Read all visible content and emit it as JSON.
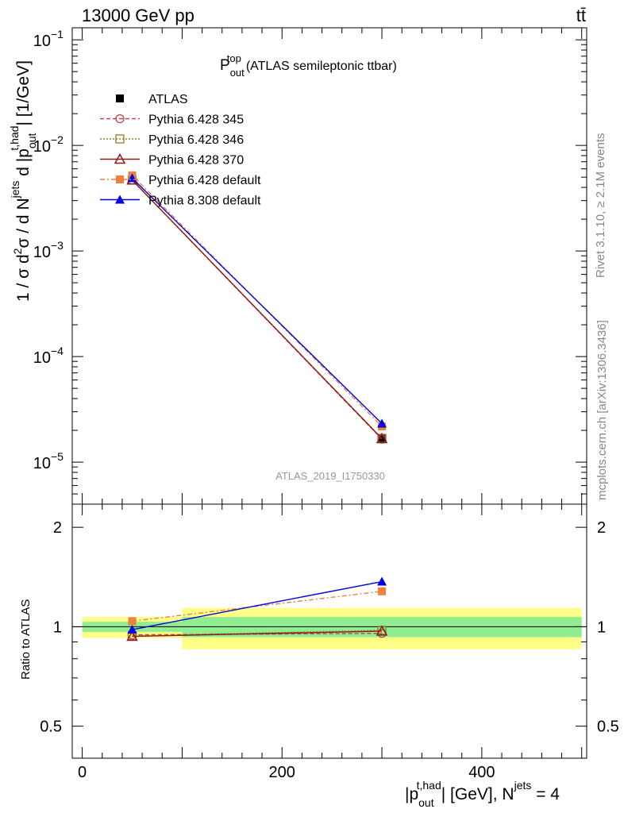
{
  "header": {
    "energy": "13000 GeV pp",
    "process": "tt̄"
  },
  "side_labels": {
    "rivet": "Rivet 3.1.10, ≥ 2.1M events",
    "mcplots": "mcplots.cern.ch [arXiv:1306.3436]"
  },
  "watermark": "ATLAS_2019_I1750330",
  "chart_data": [
    {
      "type": "line",
      "title": "(ATLAS semileptonic ttbar)",
      "title_sym": "P",
      "title_sup": "top",
      "title_sub": "out",
      "ylabel": "1 / σ d²σ / d N^jets d |p_out^t,had| [1/GeV]",
      "yscale": "log",
      "ylim": [
        4e-06,
        0.13
      ],
      "xlim": [
        -10,
        505
      ],
      "yticks": [
        {
          "v": 1e-05,
          "label": "10",
          "exp": "−5"
        },
        {
          "v": 0.0001,
          "label": "10",
          "exp": "−4"
        },
        {
          "v": 0.001,
          "label": "10",
          "exp": "−3"
        },
        {
          "v": 0.01,
          "label": "10",
          "exp": "−2"
        },
        {
          "v": 0.1,
          "label": "10",
          "exp": "−1"
        }
      ],
      "legend_position": "top-left",
      "x": [
        50,
        300
      ],
      "series": [
        {
          "name": "ATLAS",
          "values": [
            0.005,
            1.7e-05
          ],
          "color": "#000000",
          "marker": "square-filled",
          "dash": "none"
        },
        {
          "name": "Pythia 6.428 345",
          "values": [
            0.0047,
            1.65e-05
          ],
          "color": "#c0404a",
          "marker": "circle-open",
          "dash": "5,3"
        },
        {
          "name": "Pythia 6.428 346",
          "values": [
            0.0047,
            1.68e-05
          ],
          "color": "#9a7a2a",
          "marker": "square-open",
          "dash": "2,2"
        },
        {
          "name": "Pythia 6.428 370",
          "values": [
            0.0047,
            1.67e-05
          ],
          "color": "#8b1a1a",
          "marker": "triangle-open",
          "dash": "none"
        },
        {
          "name": "Pythia 6.428 default",
          "values": [
            0.0052,
            2.18e-05
          ],
          "color": "#f08040",
          "marker": "square-filled",
          "dash": "6,3,2,3"
        },
        {
          "name": "Pythia 8.308 default",
          "values": [
            0.0049,
            2.32e-05
          ],
          "color": "#0000e0",
          "marker": "triangle-filled",
          "dash": "none"
        }
      ]
    },
    {
      "type": "line",
      "ylabel": "Ratio to ATLAS",
      "yscale": "log",
      "ylim": [
        0.4,
        2.35
      ],
      "yticks": [
        {
          "v": 0.5,
          "label": "0.5"
        },
        {
          "v": 1,
          "label": "1"
        },
        {
          "v": 2,
          "label": "2"
        }
      ],
      "xticks": [
        {
          "v": 0,
          "label": "0"
        },
        {
          "v": 200,
          "label": "200"
        },
        {
          "v": 400,
          "label": "400"
        }
      ],
      "xlabel": "|p_out^t,had| [GeV], N^jets = 4",
      "bands": [
        {
          "x0": 0,
          "x1": 100,
          "inner": [
            0.965,
            1.035
          ],
          "outer": [
            0.925,
            1.07
          ]
        },
        {
          "x0": 100,
          "x1": 500,
          "inner": [
            0.93,
            1.07
          ],
          "outer": [
            0.855,
            1.14
          ]
        }
      ],
      "x": [
        50,
        300
      ],
      "series": [
        {
          "name": "Pythia 6.428 345",
          "values": [
            0.945,
            0.955
          ]
        },
        {
          "name": "Pythia 6.428 346",
          "values": [
            0.94,
            0.975
          ]
        },
        {
          "name": "Pythia 6.428 370",
          "values": [
            0.935,
            0.97
          ]
        },
        {
          "name": "Pythia 6.428 default",
          "values": [
            1.04,
            1.28
          ]
        },
        {
          "name": "Pythia 8.308 default",
          "values": [
            0.98,
            1.37
          ]
        }
      ]
    }
  ]
}
